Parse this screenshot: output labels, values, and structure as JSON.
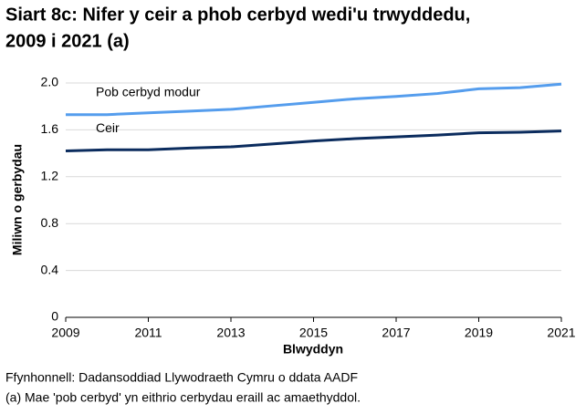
{
  "chart_data": {
    "type": "line",
    "title": [
      "Siart 8c: Nifer y ceir a phob cerbyd wedi'u trwyddedu,",
      "2009 i 2021 (a)"
    ],
    "x_label": "Blwyddyn",
    "y_label": "Miliwn o gerbydau",
    "x": [
      2009,
      2010,
      2011,
      2012,
      2013,
      2014,
      2015,
      2016,
      2017,
      2018,
      2019,
      2020,
      2021
    ],
    "series": [
      {
        "name": "Pob cerbyd modur",
        "color": "#559ded",
        "values": [
          1.73,
          1.73,
          1.745,
          1.76,
          1.775,
          1.805,
          1.835,
          1.865,
          1.885,
          1.91,
          1.95,
          1.96,
          1.99
        ]
      },
      {
        "name": "Ceir",
        "color": "#0b2c5e",
        "values": [
          1.42,
          1.43,
          1.43,
          1.445,
          1.455,
          1.48,
          1.505,
          1.525,
          1.54,
          1.555,
          1.575,
          1.58,
          1.59
        ]
      }
    ],
    "xlim": [
      2009,
      2021
    ],
    "xticks": [
      2009,
      2011,
      2013,
      2015,
      2017,
      2019,
      2021
    ],
    "ylim": [
      0,
      2
    ],
    "yticks": [
      0,
      {
        "value": 0.4,
        "label": "0.4"
      },
      {
        "value": 0.8,
        "label": "0.8"
      },
      {
        "value": 1.2,
        "label": "1.2"
      },
      {
        "value": 1.6,
        "label": "1.6"
      },
      {
        "value": 2,
        "label": "2.0"
      }
    ],
    "grid": true,
    "notes": [
      "Ffynhonnell: Dadansoddiad Llywodraeth Cymru o ddata AADF",
      "(a) Mae 'pob cerbyd' yn eithrio cerbydau eraill ac amaethyddol."
    ]
  }
}
